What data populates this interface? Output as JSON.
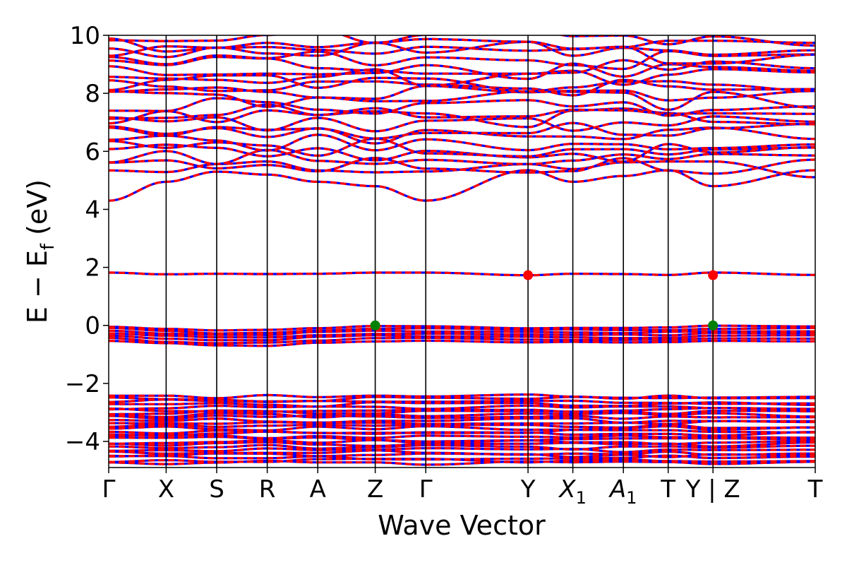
{
  "chart_data": {
    "type": "line",
    "xlabel": "Wave Vector",
    "ylabel": "E − E",
    "ylabel_sub": "f",
    "ylabel_unit": " (eV)",
    "ylim": [
      -4.9,
      10
    ],
    "yticks": [
      {
        "value": -4,
        "label": "−4"
      },
      {
        "value": -2,
        "label": "−2"
      },
      {
        "value": 0,
        "label": "0"
      },
      {
        "value": 2,
        "label": "2"
      },
      {
        "value": 4,
        "label": "4"
      },
      {
        "value": 6,
        "label": "6"
      },
      {
        "value": 8,
        "label": "8"
      },
      {
        "value": 10,
        "label": "10"
      }
    ],
    "kpoints": [
      {
        "pos": 0.0,
        "label": "Γ"
      },
      {
        "pos": 1.0,
        "label": "X"
      },
      {
        "pos": 1.88,
        "label": "S"
      },
      {
        "pos": 2.76,
        "label": "R"
      },
      {
        "pos": 3.64,
        "label": "A"
      },
      {
        "pos": 4.64,
        "label": "Z"
      },
      {
        "pos": 5.52,
        "label": "Γ"
      },
      {
        "pos": 7.3,
        "label": "Y"
      },
      {
        "pos": 8.08,
        "label": "X",
        "sub": "1"
      },
      {
        "pos": 8.96,
        "label": "A",
        "sub": "1"
      },
      {
        "pos": 9.74,
        "label": "T"
      },
      {
        "pos": 10.52,
        "label": "Y | Z"
      },
      {
        "pos": 12.3,
        "label": "T"
      }
    ],
    "xlim": [
      0,
      12.3
    ],
    "spin_colors": {
      "up": "#0000ff",
      "down": "#ff0000"
    },
    "markers": [
      {
        "pos": 4.64,
        "energy": 0.0,
        "color": "#008000",
        "kind": "VBM"
      },
      {
        "pos": 10.52,
        "energy": 0.0,
        "color": "#008000",
        "kind": "VBM"
      },
      {
        "pos": 7.3,
        "energy": 1.73,
        "color": "#ff0000",
        "kind": "CBM"
      },
      {
        "pos": 10.52,
        "energy": 1.73,
        "color": "#ff0000",
        "kind": "CBM"
      }
    ],
    "band_groups": {
      "mid_gap_band": [
        1.82,
        1.76,
        1.78,
        1.77,
        1.78,
        1.82,
        1.82,
        1.73,
        1.78,
        1.77,
        1.74,
        1.82,
        1.74
      ],
      "valence_top": [
        0.0,
        -0.1,
        -0.15,
        -0.15,
        -0.05,
        0.0,
        0.0,
        -0.05,
        -0.05,
        -0.05,
        -0.05,
        0.0,
        0.0
      ],
      "conduction_bottom": [
        4.3,
        4.95,
        5.3,
        5.2,
        4.95,
        4.8,
        4.3,
        5.35,
        4.95,
        5.15,
        5.35,
        4.8,
        5.35
      ]
    }
  }
}
